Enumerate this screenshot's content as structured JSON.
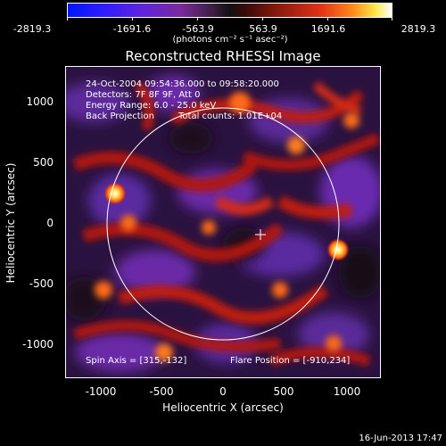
{
  "colorbar": {
    "ticks": [
      "-2819.3",
      "-1691.6",
      "-563.9",
      "563.9",
      "1691.6",
      "2819.3"
    ],
    "unit": "(photons cm⁻² s⁻¹ asec⁻²)"
  },
  "title": "Reconstructed RHESSI Image",
  "info": {
    "time_range": "24-Oct-2004 09:54:36.000 to 09:58:20.000",
    "detectors": "Detectors: 7F 8F 9F, Att 0",
    "energy": "Energy Range: 6.0 - 25.0 keV",
    "method": "Back Projection",
    "counts": "Total counts: 1.01E+04",
    "spin_axis": "Spin Axis = [315,-132]",
    "flare_position": "Flare Position = [-910,234]"
  },
  "axes": {
    "xlabel": "Heliocentric X (arcsec)",
    "ylabel": "Heliocentric Y (arcsec)",
    "xticks": [
      "-1000",
      "-500",
      "0",
      "500",
      "1000"
    ],
    "yticks": [
      "1000",
      "500",
      "0",
      "-500",
      "-1000"
    ]
  },
  "timestamp": "16-Jun-2013 17:47"
}
